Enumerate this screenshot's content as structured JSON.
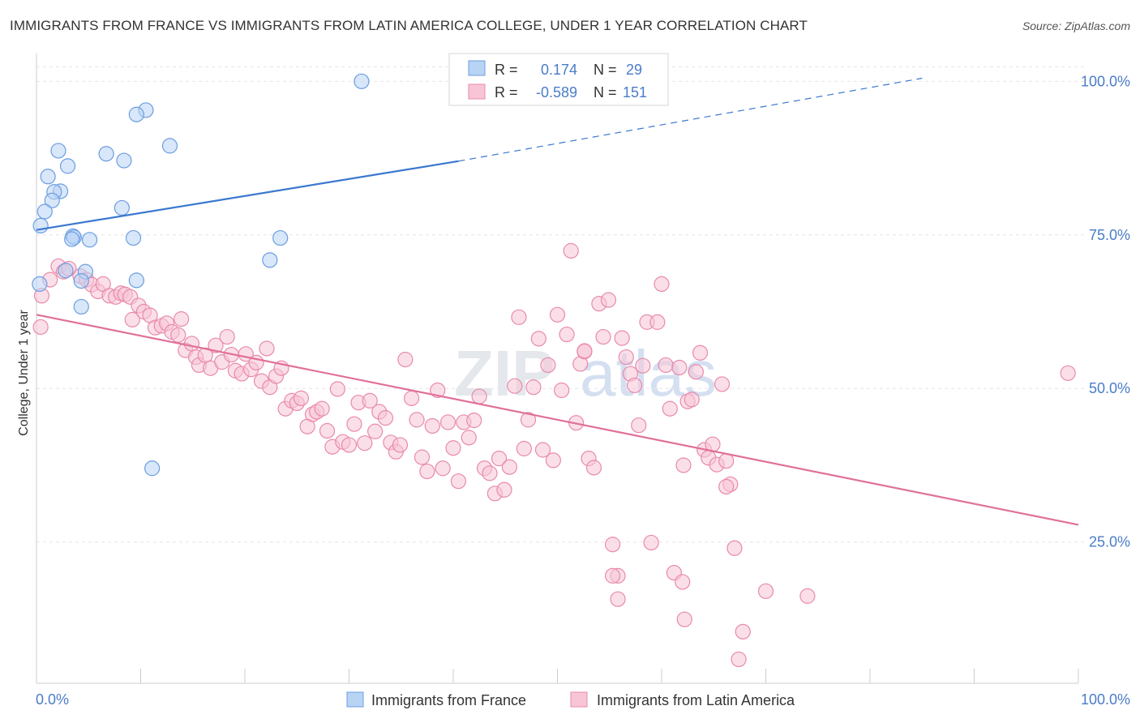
{
  "title": "IMMIGRANTS FROM FRANCE VS IMMIGRANTS FROM LATIN AMERICA COLLEGE, UNDER 1 YEAR CORRELATION CHART",
  "source": "Source: ZipAtlas.com",
  "watermark": {
    "zip": "ZIP",
    "atlas": "atlas"
  },
  "colors": {
    "france_fill": "#b9d3f5",
    "france_stroke": "#6b9de0",
    "france_line": "#3b78d0",
    "latam_fill": "#f8c5d6",
    "latam_stroke": "#e88aab",
    "latam_line": "#e0709a",
    "grid": "#e6e6e6",
    "axis_label": "#4a7cc9"
  },
  "stats_box": {
    "r_label": "R =",
    "n_label": "N =",
    "rows": [
      {
        "series": "france",
        "r": "0.174",
        "n": "29"
      },
      {
        "series": "latam",
        "r": "-0.589",
        "n": "151"
      }
    ]
  },
  "chart_data": {
    "type": "scatter",
    "title": "IMMIGRANTS FROM FRANCE VS IMMIGRANTS FROM LATIN AMERICA COLLEGE, UNDER 1 YEAR CORRELATION CHART",
    "xlabel": "",
    "ylabel": "College, Under 1 year",
    "xlim": [
      0,
      100
    ],
    "ylim": [
      2,
      104
    ],
    "x_tick_labels": {
      "left": "0.0%",
      "right": "100.0%"
    },
    "y_ticks": [
      {
        "value": 100,
        "label": "100.0%"
      },
      {
        "value": 75,
        "label": "75.0%"
      },
      {
        "value": 50,
        "label": "50.0%"
      },
      {
        "value": 25,
        "label": "25.0%"
      }
    ],
    "legend": [
      "Immigrants from France",
      "Immigrants from Latin America"
    ],
    "series": [
      {
        "name": "Immigrants from France",
        "key": "france",
        "r": 0.174,
        "n": 29,
        "trend": {
          "x0": 0,
          "y0": 75.8,
          "x1": 40.5,
          "y1": 87.0,
          "dash_x1": 85,
          "dash_y1": 100.5
        },
        "points": [
          [
            31.2,
            100.0
          ],
          [
            10.5,
            95.3
          ],
          [
            9.6,
            94.6
          ],
          [
            12.8,
            89.5
          ],
          [
            2.1,
            88.7
          ],
          [
            6.7,
            88.2
          ],
          [
            8.4,
            87.1
          ],
          [
            3.0,
            86.2
          ],
          [
            1.1,
            84.5
          ],
          [
            2.3,
            82.1
          ],
          [
            1.7,
            82.0
          ],
          [
            1.5,
            80.6
          ],
          [
            8.2,
            79.4
          ],
          [
            0.8,
            78.8
          ],
          [
            0.4,
            76.5
          ],
          [
            3.5,
            74.8
          ],
          [
            3.6,
            74.6
          ],
          [
            3.4,
            74.3
          ],
          [
            5.1,
            74.2
          ],
          [
            9.3,
            74.5
          ],
          [
            23.4,
            74.5
          ],
          [
            22.4,
            70.9
          ],
          [
            4.7,
            69.0
          ],
          [
            2.8,
            69.2
          ],
          [
            9.6,
            67.6
          ],
          [
            4.3,
            67.5
          ],
          [
            0.3,
            67.0
          ],
          [
            4.3,
            63.3
          ],
          [
            11.1,
            37.0
          ]
        ]
      },
      {
        "name": "Immigrants from Latin America",
        "key": "latam",
        "r": -0.589,
        "n": 151,
        "trend": {
          "x0": 0,
          "y0": 62.0,
          "x1": 100,
          "y1": 27.8
        },
        "points": [
          [
            0.5,
            65.1
          ],
          [
            0.4,
            60.0
          ],
          [
            1.3,
            67.7
          ],
          [
            2.1,
            69.9
          ],
          [
            2.6,
            69.0
          ],
          [
            3.1,
            69.5
          ],
          [
            4.2,
            68.3
          ],
          [
            4.8,
            67.7
          ],
          [
            5.3,
            66.9
          ],
          [
            5.9,
            65.8
          ],
          [
            6.4,
            67.0
          ],
          [
            7.0,
            65.1
          ],
          [
            7.6,
            64.9
          ],
          [
            8.1,
            65.5
          ],
          [
            8.5,
            65.3
          ],
          [
            9.0,
            64.9
          ],
          [
            9.2,
            61.2
          ],
          [
            9.8,
            63.5
          ],
          [
            10.3,
            62.5
          ],
          [
            10.9,
            61.9
          ],
          [
            11.4,
            59.9
          ],
          [
            12.0,
            60.2
          ],
          [
            12.5,
            60.6
          ],
          [
            13.0,
            59.2
          ],
          [
            13.6,
            58.7
          ],
          [
            13.9,
            61.3
          ],
          [
            14.3,
            56.2
          ],
          [
            14.9,
            57.3
          ],
          [
            15.3,
            55.1
          ],
          [
            15.6,
            53.8
          ],
          [
            16.2,
            55.4
          ],
          [
            16.7,
            53.3
          ],
          [
            17.2,
            57.0
          ],
          [
            17.8,
            54.3
          ],
          [
            18.3,
            58.4
          ],
          [
            18.7,
            55.5
          ],
          [
            19.1,
            52.9
          ],
          [
            19.7,
            52.4
          ],
          [
            20.1,
            55.6
          ],
          [
            20.6,
            53.1
          ],
          [
            21.1,
            54.2
          ],
          [
            21.6,
            51.2
          ],
          [
            22.1,
            56.5
          ],
          [
            22.4,
            50.2
          ],
          [
            23.0,
            52.0
          ],
          [
            23.5,
            53.3
          ],
          [
            23.9,
            46.7
          ],
          [
            24.5,
            48.0
          ],
          [
            25.0,
            47.6
          ],
          [
            25.4,
            48.4
          ],
          [
            26.0,
            43.8
          ],
          [
            26.5,
            45.8
          ],
          [
            26.9,
            46.2
          ],
          [
            27.4,
            46.7
          ],
          [
            27.9,
            43.1
          ],
          [
            28.4,
            40.5
          ],
          [
            28.9,
            49.9
          ],
          [
            29.4,
            41.3
          ],
          [
            30.0,
            40.8
          ],
          [
            30.5,
            44.2
          ],
          [
            30.9,
            47.7
          ],
          [
            31.5,
            41.1
          ],
          [
            32.0,
            48.0
          ],
          [
            32.5,
            43.0
          ],
          [
            32.9,
            46.2
          ],
          [
            33.5,
            45.2
          ],
          [
            34.0,
            41.2
          ],
          [
            34.5,
            39.7
          ],
          [
            34.9,
            40.8
          ],
          [
            35.4,
            54.7
          ],
          [
            36.0,
            48.4
          ],
          [
            36.5,
            44.9
          ],
          [
            37.0,
            38.8
          ],
          [
            37.5,
            36.5
          ],
          [
            38.0,
            43.9
          ],
          [
            38.5,
            49.7
          ],
          [
            39.0,
            37.0
          ],
          [
            39.5,
            44.5
          ],
          [
            40.0,
            40.3
          ],
          [
            40.5,
            34.9
          ],
          [
            41.0,
            44.5
          ],
          [
            41.5,
            42.0
          ],
          [
            42.0,
            44.8
          ],
          [
            42.5,
            48.7
          ],
          [
            43.0,
            37.0
          ],
          [
            43.5,
            36.2
          ],
          [
            44.0,
            32.9
          ],
          [
            44.4,
            38.6
          ],
          [
            44.9,
            33.5
          ],
          [
            45.4,
            37.2
          ],
          [
            45.9,
            50.4
          ],
          [
            46.3,
            61.6
          ],
          [
            46.8,
            40.2
          ],
          [
            47.2,
            44.9
          ],
          [
            47.7,
            50.2
          ],
          [
            48.2,
            58.1
          ],
          [
            48.6,
            40.0
          ],
          [
            49.1,
            53.8
          ],
          [
            49.6,
            38.3
          ],
          [
            50.0,
            62.0
          ],
          [
            50.4,
            49.7
          ],
          [
            50.9,
            58.8
          ],
          [
            51.3,
            72.4
          ],
          [
            51.8,
            44.4
          ],
          [
            52.2,
            54.0
          ],
          [
            52.6,
            56.0
          ],
          [
            53.0,
            38.6
          ],
          [
            53.5,
            37.1
          ],
          [
            54.0,
            63.8
          ],
          [
            54.4,
            58.4
          ],
          [
            54.9,
            64.4
          ],
          [
            55.3,
            24.6
          ],
          [
            55.8,
            19.5
          ],
          [
            56.2,
            58.2
          ],
          [
            56.6,
            55.1
          ],
          [
            57.0,
            52.4
          ],
          [
            57.4,
            50.5
          ],
          [
            57.8,
            44.0
          ],
          [
            58.2,
            53.7
          ],
          [
            58.6,
            60.8
          ],
          [
            59.0,
            24.9
          ],
          [
            59.6,
            60.8
          ],
          [
            60.0,
            67.0
          ],
          [
            60.4,
            53.8
          ],
          [
            60.8,
            46.7
          ],
          [
            61.2,
            20.0
          ],
          [
            61.7,
            53.4
          ],
          [
            62.1,
            37.5
          ],
          [
            62.5,
            47.9
          ],
          [
            62.9,
            48.2
          ],
          [
            63.3,
            52.7
          ],
          [
            63.7,
            55.8
          ],
          [
            64.1,
            40.0
          ],
          [
            64.5,
            38.7
          ],
          [
            64.9,
            40.9
          ],
          [
            65.3,
            37.6
          ],
          [
            65.8,
            50.7
          ],
          [
            66.2,
            38.2
          ],
          [
            66.6,
            34.4
          ],
          [
            67.0,
            24.0
          ],
          [
            67.4,
            5.9
          ],
          [
            67.8,
            10.4
          ],
          [
            55.8,
            15.7
          ],
          [
            62.2,
            12.4
          ],
          [
            70.0,
            17.0
          ],
          [
            74.0,
            16.2
          ],
          [
            99.0,
            52.5
          ],
          [
            55.3,
            19.5
          ],
          [
            62.0,
            18.5
          ],
          [
            66.2,
            34.0
          ],
          [
            52.6,
            56.1
          ]
        ]
      }
    ]
  }
}
